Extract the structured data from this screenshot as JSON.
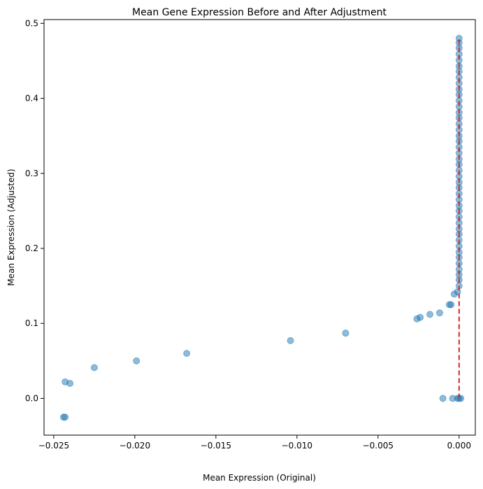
{
  "chart_data": {
    "type": "scatter",
    "title": "Mean Gene Expression Before and After Adjustment",
    "xlabel": "Mean Expression (Original)",
    "ylabel": "Mean Expression (Adjusted)",
    "xlim": [
      -0.0256,
      0.001
    ],
    "ylim": [
      -0.049,
      0.505
    ],
    "xticks": [
      -0.025,
      -0.02,
      -0.015,
      -0.01,
      -0.005,
      0.0
    ],
    "xtick_labels": [
      "−0.025",
      "−0.020",
      "−0.015",
      "−0.010",
      "−0.005",
      "0.000"
    ],
    "yticks": [
      0.0,
      0.1,
      0.2,
      0.3,
      0.4,
      0.5
    ],
    "ytick_labels": [
      "0.0",
      "0.1",
      "0.2",
      "0.3",
      "0.4",
      "0.5"
    ],
    "grid": false,
    "point_color": "#1f77b4",
    "point_alpha": 0.5,
    "reference_line": {
      "color": "#d62728",
      "style": "dashed",
      "x": [
        0.0,
        0.0
      ],
      "y": [
        0.0,
        0.48
      ]
    },
    "points": [
      {
        "x": -0.0244,
        "y": -0.025
      },
      {
        "x": -0.0243,
        "y": -0.025
      },
      {
        "x": -0.0243,
        "y": 0.022
      },
      {
        "x": -0.024,
        "y": 0.02
      },
      {
        "x": -0.0225,
        "y": 0.041
      },
      {
        "x": -0.0199,
        "y": 0.05
      },
      {
        "x": -0.0168,
        "y": 0.06
      },
      {
        "x": -0.0104,
        "y": 0.077
      },
      {
        "x": -0.007,
        "y": 0.087
      },
      {
        "x": -0.0026,
        "y": 0.106
      },
      {
        "x": -0.0024,
        "y": 0.108
      },
      {
        "x": -0.0018,
        "y": 0.112
      },
      {
        "x": -0.0012,
        "y": 0.114
      },
      {
        "x": -0.001,
        "y": 0.0
      },
      {
        "x": -0.0006,
        "y": 0.125
      },
      {
        "x": -0.0005,
        "y": 0.125
      },
      {
        "x": -0.0004,
        "y": 0.0
      },
      {
        "x": -0.0003,
        "y": 0.139
      },
      {
        "x": -0.0001,
        "y": 0.142
      },
      {
        "x": 0.0,
        "y": 0.0
      },
      {
        "x": 0.0001,
        "y": 0.0
      },
      {
        "x": -0.0001,
        "y": 0.0
      },
      {
        "x": 0.0,
        "y": 0.15
      },
      {
        "x": 0.0,
        "y": 0.158
      },
      {
        "x": 0.0,
        "y": 0.165
      },
      {
        "x": 0.0,
        "y": 0.172
      },
      {
        "x": 0.0,
        "y": 0.18
      },
      {
        "x": 0.0,
        "y": 0.188
      },
      {
        "x": 0.0,
        "y": 0.195
      },
      {
        "x": 0.0,
        "y": 0.203
      },
      {
        "x": 0.0,
        "y": 0.211
      },
      {
        "x": 0.0,
        "y": 0.219
      },
      {
        "x": 0.0,
        "y": 0.226
      },
      {
        "x": 0.0,
        "y": 0.234
      },
      {
        "x": 0.0,
        "y": 0.242
      },
      {
        "x": 0.0,
        "y": 0.25
      },
      {
        "x": 0.0,
        "y": 0.257
      },
      {
        "x": 0.0,
        "y": 0.265
      },
      {
        "x": 0.0,
        "y": 0.273
      },
      {
        "x": 0.0,
        "y": 0.281
      },
      {
        "x": 0.0,
        "y": 0.288
      },
      {
        "x": 0.0,
        "y": 0.296
      },
      {
        "x": 0.0,
        "y": 0.304
      },
      {
        "x": 0.0,
        "y": 0.312
      },
      {
        "x": 0.0,
        "y": 0.319
      },
      {
        "x": 0.0,
        "y": 0.327
      },
      {
        "x": 0.0,
        "y": 0.335
      },
      {
        "x": 0.0,
        "y": 0.343
      },
      {
        "x": 0.0,
        "y": 0.35
      },
      {
        "x": 0.0,
        "y": 0.358
      },
      {
        "x": 0.0,
        "y": 0.366
      },
      {
        "x": 0.0,
        "y": 0.374
      },
      {
        "x": 0.0,
        "y": 0.381
      },
      {
        "x": 0.0,
        "y": 0.389
      },
      {
        "x": 0.0,
        "y": 0.397
      },
      {
        "x": 0.0,
        "y": 0.405
      },
      {
        "x": 0.0,
        "y": 0.412
      },
      {
        "x": 0.0,
        "y": 0.42
      },
      {
        "x": 0.0,
        "y": 0.428
      },
      {
        "x": 0.0,
        "y": 0.436
      },
      {
        "x": 0.0,
        "y": 0.443
      },
      {
        "x": 0.0,
        "y": 0.451
      },
      {
        "x": 0.0,
        "y": 0.459
      },
      {
        "x": 0.0,
        "y": 0.467
      },
      {
        "x": 0.0,
        "y": 0.474
      },
      {
        "x": 0.0,
        "y": 0.48
      }
    ]
  }
}
